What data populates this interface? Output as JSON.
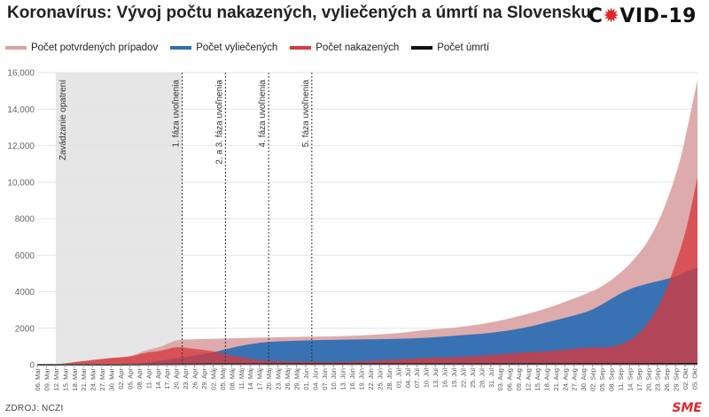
{
  "header": {
    "title": "Koronavírus: Vývoj počtu nakazených, vyliečených a úmrtí na Slovensku",
    "logo_prefix": "C",
    "logo_virus": "✹",
    "logo_suffix": "VID-19"
  },
  "footer": {
    "source": "ZDROJ: NCZI",
    "brand": "SME"
  },
  "colors": {
    "confirmed": "#d9a2a2",
    "recovered": "#2f6fb3",
    "active": "#d63a3f",
    "deaths": "#111111",
    "shaded": "#e6e6e6"
  },
  "chart_data": {
    "type": "area",
    "ylim": [
      0,
      16000
    ],
    "yticks": [
      "0",
      "2000",
      "4000",
      "6000",
      "8000",
      "10,000",
      "12,000",
      "14,000",
      "16,000"
    ],
    "ytick_values": [
      0,
      2000,
      4000,
      6000,
      8000,
      10000,
      12000,
      14000,
      16000
    ],
    "x_start": "2020-03-06",
    "x_end": "2020-10-06",
    "xticks": [
      "06. Mar",
      "09. Mar",
      "12. Mar",
      "15. Mar",
      "18. Mar",
      "21. Mar",
      "24. Mar",
      "27. Mar",
      "30. Mar",
      "02. Apr",
      "05. Apr",
      "08. Apr",
      "11. Apr",
      "14. Apr",
      "17. Apr",
      "20. Apr",
      "23. Apr",
      "26. Apr",
      "29. Apr",
      "02. Máj",
      "05. Máj",
      "08. Máj",
      "11. Máj",
      "14. Máj",
      "17. Máj",
      "20. Máj",
      "23. Máj",
      "26. Máj",
      "29. Máj",
      "01. Jún",
      "04. Jún",
      "07. Jún",
      "10. Jún",
      "13. Jún",
      "16. Jún",
      "19. Jún",
      "22. Jún",
      "25. Jún",
      "28. Jún",
      "01. Júl",
      "04. Júl",
      "07. Júl",
      "10. Júl",
      "13. Júl",
      "16. Júl",
      "19. Júl",
      "22. Júl",
      "25. Júl",
      "28. Júl",
      "31. Júl",
      "03. Aug",
      "06. Aug",
      "09. Aug",
      "12. Aug",
      "15. Aug",
      "18. Aug",
      "21. Aug",
      "24. Aug",
      "27. Aug",
      "30. Aug",
      "02. Sep",
      "05. Sep",
      "08. Sep",
      "11. Sep",
      "14. Sep",
      "17. Sep",
      "20. Sep",
      "23. Sep",
      "26. Sep",
      "29. Sep",
      "02. Okt",
      "05. Okt"
    ],
    "legend": [
      "Počet potvrdených prípadov",
      "Počet vyliečených",
      "Počet nakazených",
      "Počet úmrtí"
    ],
    "annotations": {
      "shaded_region": {
        "from": "2020-03-12",
        "to": "2020-04-22",
        "label": "Zavádzanie opatrení"
      },
      "lines": [
        {
          "date": "2020-04-22",
          "label": "1. fáza uvoľnenia"
        },
        {
          "date": "2020-05-06",
          "label": "2. a 3. fáza uvoľnenia"
        },
        {
          "date": "2020-05-20",
          "label": "4. fáza uvoľnenia"
        },
        {
          "date": "2020-06-03",
          "label": "5. fáza uvoľnenia"
        }
      ]
    },
    "series": [
      {
        "name": "Počet potvrdených prípadov",
        "x": [
          "2020-03-06",
          "2020-03-12",
          "2020-03-20",
          "2020-03-28",
          "2020-04-05",
          "2020-04-10",
          "2020-04-15",
          "2020-04-20",
          "2020-04-25",
          "2020-05-01",
          "2020-05-10",
          "2020-05-20",
          "2020-05-31",
          "2020-06-15",
          "2020-06-30",
          "2020-07-10",
          "2020-07-20",
          "2020-07-31",
          "2020-08-10",
          "2020-08-20",
          "2020-08-31",
          "2020-09-05",
          "2020-09-10",
          "2020-09-15",
          "2020-09-20",
          "2020-09-25",
          "2020-09-30",
          "2020-10-03",
          "2020-10-06"
        ],
        "values": [
          5,
          20,
          180,
          340,
          480,
          770,
          1000,
          1330,
          1390,
          1420,
          1460,
          1500,
          1530,
          1580,
          1720,
          1900,
          2050,
          2320,
          2700,
          3200,
          3900,
          4300,
          4900,
          5700,
          6800,
          8500,
          11000,
          13200,
          15600
        ]
      },
      {
        "name": "Počet vyliečených",
        "x": [
          "2020-03-06",
          "2020-03-28",
          "2020-04-05",
          "2020-04-10",
          "2020-04-15",
          "2020-04-20",
          "2020-04-25",
          "2020-05-01",
          "2020-05-05",
          "2020-05-10",
          "2020-05-15",
          "2020-05-20",
          "2020-05-31",
          "2020-06-15",
          "2020-06-30",
          "2020-07-10",
          "2020-07-20",
          "2020-07-31",
          "2020-08-10",
          "2020-08-20",
          "2020-08-31",
          "2020-09-05",
          "2020-09-10",
          "2020-09-15",
          "2020-09-20",
          "2020-09-25",
          "2020-09-30",
          "2020-10-03",
          "2020-10-06"
        ],
        "values": [
          0,
          5,
          20,
          110,
          230,
          350,
          480,
          650,
          800,
          1000,
          1150,
          1250,
          1330,
          1380,
          1420,
          1480,
          1600,
          1750,
          2000,
          2400,
          2900,
          3300,
          3800,
          4200,
          4450,
          4650,
          4900,
          5150,
          5300
        ]
      },
      {
        "name": "Počet nakazených",
        "x": [
          "2020-03-06",
          "2020-03-12",
          "2020-03-20",
          "2020-03-28",
          "2020-04-05",
          "2020-04-10",
          "2020-04-15",
          "2020-04-20",
          "2020-04-25",
          "2020-05-01",
          "2020-05-05",
          "2020-05-10",
          "2020-05-15",
          "2020-05-20",
          "2020-05-31",
          "2020-06-15",
          "2020-06-30",
          "2020-07-10",
          "2020-07-20",
          "2020-07-31",
          "2020-08-10",
          "2020-08-20",
          "2020-08-31",
          "2020-09-05",
          "2020-09-10",
          "2020-09-15",
          "2020-09-20",
          "2020-09-25",
          "2020-09-30",
          "2020-10-03",
          "2020-10-06"
        ],
        "values": [
          5,
          20,
          180,
          335,
          460,
          650,
          770,
          960,
          890,
          760,
          610,
          440,
          300,
          220,
          170,
          170,
          280,
          380,
          420,
          540,
          660,
          760,
          940,
          950,
          1050,
          1450,
          2300,
          3800,
          6100,
          7900,
          10300
        ]
      },
      {
        "name": "Počet úmrtí",
        "x": [
          "2020-03-06",
          "2020-04-01",
          "2020-05-01",
          "2020-06-01",
          "2020-08-01",
          "2020-09-15",
          "2020-10-06"
        ],
        "values": [
          0,
          2,
          25,
          28,
          31,
          40,
          48
        ]
      }
    ]
  }
}
